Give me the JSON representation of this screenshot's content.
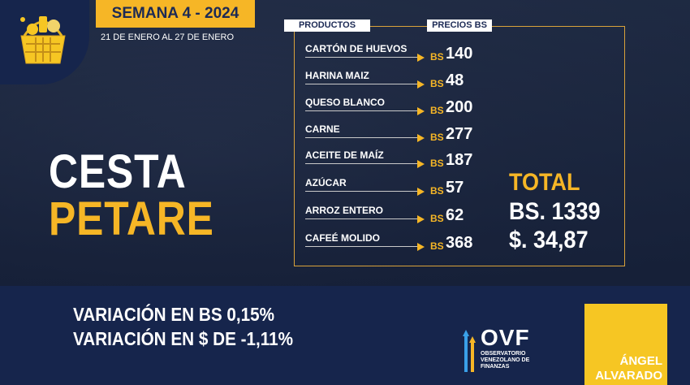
{
  "header": {
    "week": "SEMANA 4 - 2024",
    "date_range": "21 DE ENERO AL 27 DE ENERO"
  },
  "title": {
    "line1": "CESTA",
    "line2": "PETARE"
  },
  "table": {
    "col_products": "PRODUCTOS",
    "col_prices": "PRECIOS BS",
    "rows": [
      {
        "product": "CARTÓN DE HUEVOS",
        "currency": "BS",
        "price": "140"
      },
      {
        "product": "HARINA MAIZ",
        "currency": "BS",
        "price": "48"
      },
      {
        "product": "QUESO BLANCO",
        "currency": "BS",
        "price": "200"
      },
      {
        "product": "CARNE",
        "currency": "BS",
        "price": "277"
      },
      {
        "product": "ACEITE DE MAÍZ",
        "currency": "BS",
        "price": "187"
      },
      {
        "product": "AZÚCAR",
        "currency": "BS",
        "price": "57"
      },
      {
        "product": "ARROZ ENTERO",
        "currency": "BS",
        "price": "62"
      },
      {
        "product": "CAFEÉ MOLIDO",
        "currency": "BS",
        "price": "368"
      }
    ]
  },
  "total": {
    "label": "TOTAL",
    "bs": "BS. 1339",
    "usd": "$. 34,87"
  },
  "variation": {
    "bs": "VARIACIÓN EN BS 0,15%",
    "usd": "VARIACIÓN EN $ DE -1,11%"
  },
  "logo": {
    "name": "OVF",
    "subtitle": "OBSERVATORIO VENEZOLANO DE FINANZAS"
  },
  "author": {
    "first": "ÁNGEL",
    "last": "ALVARADO"
  },
  "colors": {
    "accent": "#f6b626",
    "navy": "#16254c"
  },
  "icons": [
    "shopping-basket-icon",
    "arrow-right-icon",
    "ovf-logo-icon"
  ]
}
